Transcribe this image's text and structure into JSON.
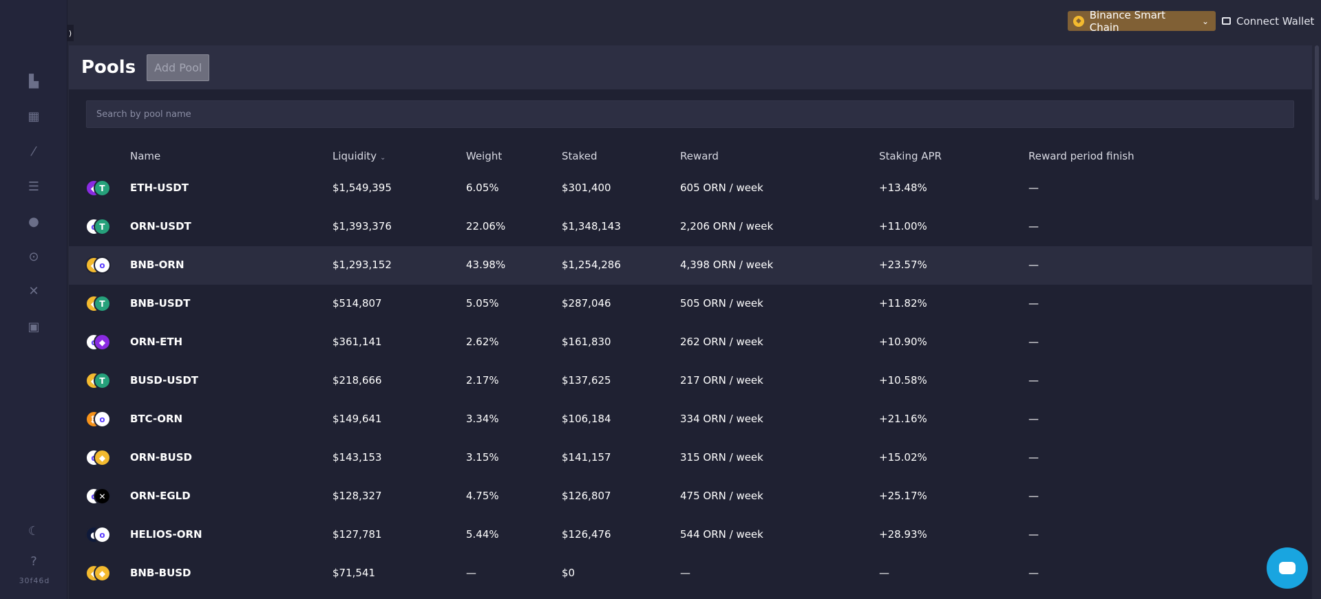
{
  "header": {
    "chain_label": "Binance Smart Chain",
    "connect_wallet": "Connect Wallet"
  },
  "sidebar": {
    "icons": [
      "trade-icon",
      "dashboard-icon",
      "swap-icon",
      "orders-icon",
      "pools-icon",
      "staking-icon",
      "close-icon",
      "wallet-icon"
    ],
    "theme_icon": "moon-icon",
    "help_icon": "help-icon",
    "version": "30f46d"
  },
  "page": {
    "title": "Pools",
    "add_pool": "Add Pool",
    "search_placeholder": "Search by pool name"
  },
  "table": {
    "headers": {
      "name": "Name",
      "liquidity": "Liquidity",
      "weight": "Weight",
      "staked": "Staked",
      "reward": "Reward",
      "apr": "Staking APR",
      "finish": "Reward period finish"
    },
    "rows": [
      {
        "pair": "ETH-USDT",
        "liquidity": "$1,549,395",
        "weight": "6.05%",
        "staked": "$301,400",
        "reward": "605 ORN / week",
        "apr": "+13.48%",
        "finish": "—",
        "c1": "#8a2be2",
        "c2": "#26a17b",
        "g1": "◆",
        "g2": "T"
      },
      {
        "pair": "ORN-USDT",
        "liquidity": "$1,393,376",
        "weight": "22.06%",
        "staked": "$1,348,143",
        "reward": "2,206 ORN / week",
        "apr": "+11.00%",
        "finish": "—",
        "c1": "#ffffff",
        "c2": "#26a17b",
        "g1": "o",
        "g2": "T"
      },
      {
        "pair": "BNB-ORN",
        "liquidity": "$1,293,152",
        "weight": "43.98%",
        "staked": "$1,254,286",
        "reward": "4,398 ORN / week",
        "apr": "+23.57%",
        "finish": "—",
        "c1": "#f3ba2f",
        "c2": "#ffffff",
        "g1": "◆",
        "g2": "o"
      },
      {
        "pair": "BNB-USDT",
        "liquidity": "$514,807",
        "weight": "5.05%",
        "staked": "$287,046",
        "reward": "505 ORN / week",
        "apr": "+11.82%",
        "finish": "—",
        "c1": "#f3ba2f",
        "c2": "#26a17b",
        "g1": "◆",
        "g2": "T"
      },
      {
        "pair": "ORN-ETH",
        "liquidity": "$361,141",
        "weight": "2.62%",
        "staked": "$161,830",
        "reward": "262 ORN / week",
        "apr": "+10.90%",
        "finish": "—",
        "c1": "#ffffff",
        "c2": "#8a2be2",
        "g1": "o",
        "g2": "◆"
      },
      {
        "pair": "BUSD-USDT",
        "liquidity": "$218,666",
        "weight": "2.17%",
        "staked": "$137,625",
        "reward": "217 ORN / week",
        "apr": "+10.58%",
        "finish": "—",
        "c1": "#f3ba2f",
        "c2": "#26a17b",
        "g1": "◆",
        "g2": "T"
      },
      {
        "pair": "BTC-ORN",
        "liquidity": "$149,641",
        "weight": "3.34%",
        "staked": "$106,184",
        "reward": "334 ORN / week",
        "apr": "+21.16%",
        "finish": "—",
        "c1": "#f7931a",
        "c2": "#ffffff",
        "g1": "₿",
        "g2": "o"
      },
      {
        "pair": "ORN-BUSD",
        "liquidity": "$143,153",
        "weight": "3.15%",
        "staked": "$141,157",
        "reward": "315 ORN / week",
        "apr": "+15.02%",
        "finish": "—",
        "c1": "#ffffff",
        "c2": "#f3ba2f",
        "g1": "o",
        "g2": "◆"
      },
      {
        "pair": "ORN-EGLD",
        "liquidity": "$128,327",
        "weight": "4.75%",
        "staked": "$126,807",
        "reward": "475 ORN / week",
        "apr": "+25.17%",
        "finish": "—",
        "c1": "#ffffff",
        "c2": "#000000",
        "g1": "o",
        "g2": "✕"
      },
      {
        "pair": "HELIOS-ORN",
        "liquidity": "$127,781",
        "weight": "5.44%",
        "staked": "$126,476",
        "reward": "544 ORN / week",
        "apr": "+28.93%",
        "finish": "—",
        "c1": "#0f1a3a",
        "c2": "#ffffff",
        "g1": "●",
        "g2": "o"
      },
      {
        "pair": "BNB-BUSD",
        "liquidity": "$71,541",
        "weight": "—",
        "staked": "$0",
        "reward": "—",
        "apr": "—",
        "finish": "—",
        "c1": "#f3ba2f",
        "c2": "#f3ba2f",
        "g1": "◆",
        "g2": "◆"
      }
    ]
  },
  "colors": {
    "accent_orn": "#5b3bff",
    "chain_button": "#806035",
    "chat_button": "#19a5e0"
  }
}
